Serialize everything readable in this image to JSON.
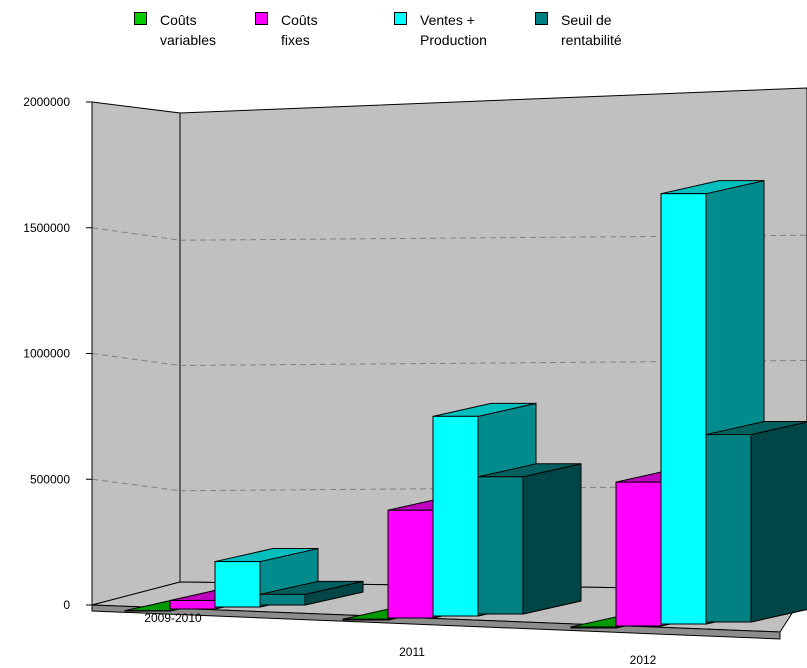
{
  "chart_data": {
    "type": "bar",
    "categories": [
      "2009-2010",
      "2011",
      "2012"
    ],
    "series": [
      {
        "name": "Coûts variables",
        "values": [
          2000,
          3000,
          4000
        ],
        "color": "#00cc00"
      },
      {
        "name": "Coûts fixes",
        "values": [
          60000,
          440000,
          545000
        ],
        "color": "#ff00ff"
      },
      {
        "name": "Ventes + Production",
        "values": [
          320000,
          815000,
          1630000
        ],
        "color": "#00ffff"
      },
      {
        "name": "Seuil de rentabilité",
        "values": [
          75000,
          560000,
          710000
        ],
        "color": "#008080"
      }
    ],
    "y_ticks": [
      "0",
      "500000",
      "1000000",
      "1500000",
      "2000000"
    ],
    "ylim": [
      0,
      2000000
    ],
    "grid": true,
    "grid_style": "dashed",
    "legend_position": "top",
    "title": "",
    "xlabel": "",
    "ylabel": ""
  },
  "legend": [
    {
      "line1": "Coûts",
      "line2": "variables"
    },
    {
      "line1": "Coûts fixes",
      "line2": ""
    },
    {
      "line1": "Ventes +",
      "line2": "Production"
    },
    {
      "line1": "Seuil de",
      "line2": "rentabilité"
    }
  ]
}
